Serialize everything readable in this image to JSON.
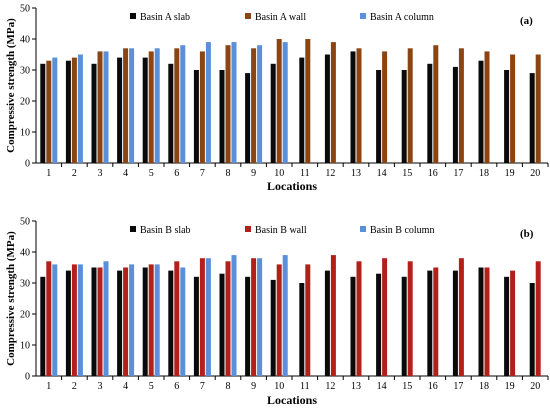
{
  "chart_data": [
    {
      "type": "bar",
      "panel_label": "(a)",
      "xlabel": "Locations",
      "ylabel": "Compressive strength (MPa)",
      "ylim": [
        0,
        50
      ],
      "yticks": [
        0,
        10,
        20,
        30,
        40,
        50
      ],
      "grid": false,
      "legend_position": "top",
      "categories": [
        "1",
        "2",
        "3",
        "4",
        "5",
        "6",
        "7",
        "8",
        "9",
        "10",
        "11",
        "12",
        "13",
        "14",
        "15",
        "16",
        "17",
        "18",
        "19",
        "20"
      ],
      "series": [
        {
          "name": "Basin A slab",
          "color": "#0a0a0a",
          "values": [
            32,
            33,
            32,
            34,
            34,
            32,
            30,
            30,
            29,
            32,
            34,
            35,
            36,
            30,
            30,
            32,
            31,
            33,
            30,
            29
          ]
        },
        {
          "name": "Basin A wall",
          "color": "#8a4513",
          "values": [
            33,
            34,
            36,
            37,
            36,
            37,
            36,
            38,
            37,
            40,
            40,
            39,
            37,
            36,
            37,
            38,
            37,
            36,
            35,
            35
          ]
        },
        {
          "name": "Basin A column",
          "color": "#5b8fd9",
          "values": [
            34,
            35,
            36,
            37,
            37,
            38,
            39,
            39,
            38,
            39,
            null,
            null,
            null,
            null,
            null,
            null,
            null,
            null,
            null,
            null
          ]
        }
      ]
    },
    {
      "type": "bar",
      "panel_label": "(b)",
      "xlabel": "Locations",
      "ylabel": "Compressive strength (MPa)",
      "ylim": [
        0,
        50
      ],
      "yticks": [
        0,
        10,
        20,
        30,
        40,
        50
      ],
      "grid": false,
      "legend_position": "top",
      "categories": [
        "1",
        "2",
        "3",
        "4",
        "5",
        "6",
        "7",
        "8",
        "9",
        "10",
        "11",
        "12",
        "13",
        "14",
        "15",
        "16",
        "17",
        "18",
        "19",
        "20"
      ],
      "series": [
        {
          "name": "Basin B slab",
          "color": "#0a0a0a",
          "values": [
            32,
            34,
            35,
            34,
            35,
            34,
            32,
            33,
            32,
            31,
            30,
            34,
            32,
            33,
            32,
            34,
            34,
            35,
            32,
            30
          ]
        },
        {
          "name": "Basin B wall",
          "color": "#b3201a",
          "values": [
            37,
            36,
            35,
            35,
            36,
            37,
            38,
            37,
            38,
            36,
            36,
            39,
            37,
            38,
            37,
            35,
            38,
            35,
            34,
            37
          ]
        },
        {
          "name": "Basin B column",
          "color": "#5b8fd9",
          "values": [
            36,
            36,
            37,
            36,
            36,
            35,
            38,
            39,
            38,
            39,
            null,
            null,
            null,
            null,
            null,
            null,
            null,
            null,
            null,
            null
          ]
        }
      ]
    }
  ]
}
